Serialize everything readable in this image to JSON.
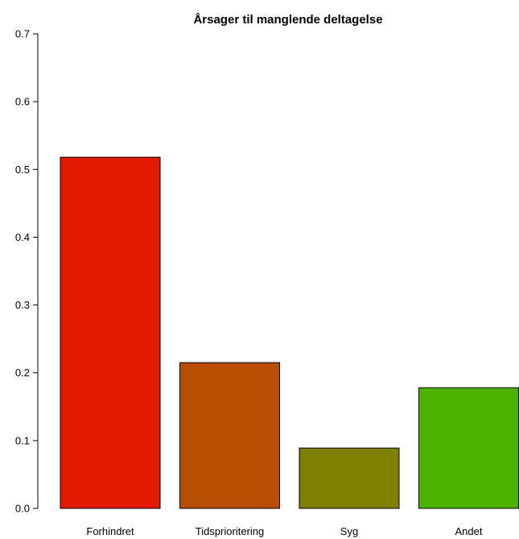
{
  "chart_data": {
    "type": "bar",
    "title": "Årsager til manglende deltagelse",
    "xlabel": "",
    "ylabel": "",
    "categories": [
      "Forhindret",
      "Tidsprioritering",
      "Syg",
      "Andet"
    ],
    "values": [
      0.518,
      0.215,
      0.089,
      0.178
    ],
    "colors": [
      "#e41a00",
      "#b84e00",
      "#808000",
      "#4bb200"
    ],
    "ylim": [
      0,
      0.7
    ],
    "yticks": [
      0.0,
      0.1,
      0.2,
      0.3,
      0.4,
      0.5,
      0.6,
      0.7
    ],
    "ytick_labels": [
      "0.0",
      "0.1",
      "0.2",
      "0.3",
      "0.4",
      "0.5",
      "0.6",
      "0.7"
    ],
    "grid": false,
    "legend": "none"
  }
}
